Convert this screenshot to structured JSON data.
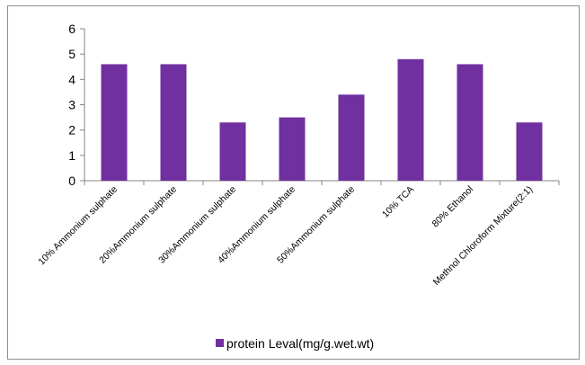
{
  "chart_data": {
    "type": "bar",
    "categories": [
      "10% Ammonium sulphate",
      "20%Ammonium sulphate",
      "30%Ammonium sulphate",
      "40%Ammonium sulphate",
      "50%Ammonium sulphate",
      "10% TCA",
      "80% Ethanol",
      "Methnol Chloroform Mixture(2:1)"
    ],
    "series": [
      {
        "name": "protein Leval(mg/g.wet.wt)",
        "values": [
          4.6,
          4.6,
          2.3,
          2.5,
          3.4,
          4.8,
          4.6,
          2.3
        ],
        "color": "#7030a0"
      }
    ],
    "yticks": [
      "0",
      "1",
      "2",
      "3",
      "4",
      "5",
      "6"
    ],
    "ylim": [
      0,
      6
    ],
    "grid": false,
    "legend_position": "bottom"
  }
}
